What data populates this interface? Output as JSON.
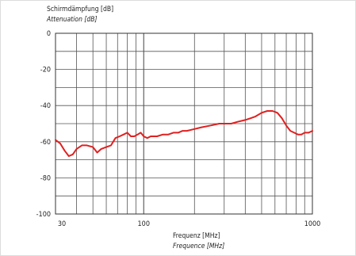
{
  "chart_data": {
    "type": "line",
    "ylabel_de": "Schirmdämpfung [dB]",
    "ylabel_en": "Attenuation [dB]",
    "xlabel_de": "Frequenz [MHz]",
    "xlabel_en": "Frequence [MHz]",
    "xscale": "log",
    "xlim": [
      30,
      1000
    ],
    "ylim": [
      -100,
      0
    ],
    "grid": true,
    "x_tick_labels": [
      "30",
      "100",
      "1000"
    ],
    "y_tick_labels": [
      "0",
      "-20",
      "-40",
      "-60",
      "-80",
      "-100"
    ],
    "series_color": "#e02020",
    "series": [
      {
        "x": [
          30,
          32,
          34,
          36,
          38,
          40,
          43,
          46,
          50,
          53,
          56,
          60,
          64,
          68,
          72,
          76,
          80,
          84,
          88,
          92,
          96,
          100,
          105,
          110,
          120,
          130,
          140,
          150,
          160,
          170,
          180,
          200,
          220,
          250,
          280,
          300,
          330,
          360,
          400,
          430,
          460,
          500,
          540,
          580,
          620,
          660,
          700,
          740,
          780,
          820,
          860,
          900,
          950,
          1000
        ],
        "y": [
          -59,
          -61,
          -65,
          -68,
          -67,
          -64,
          -62,
          -62,
          -63,
          -66,
          -64,
          -63,
          -62,
          -58,
          -57,
          -56,
          -55,
          -57,
          -57,
          -56,
          -55,
          -57,
          -58,
          -57,
          -57,
          -56,
          -56,
          -55,
          -55,
          -54,
          -54,
          -53,
          -52,
          -51,
          -50,
          -50,
          -50,
          -49,
          -48,
          -47,
          -46,
          -44,
          -43,
          -43,
          -44,
          -47,
          -51,
          -54,
          -55,
          -56,
          -56,
          -55,
          -55,
          -54
        ]
      }
    ]
  }
}
